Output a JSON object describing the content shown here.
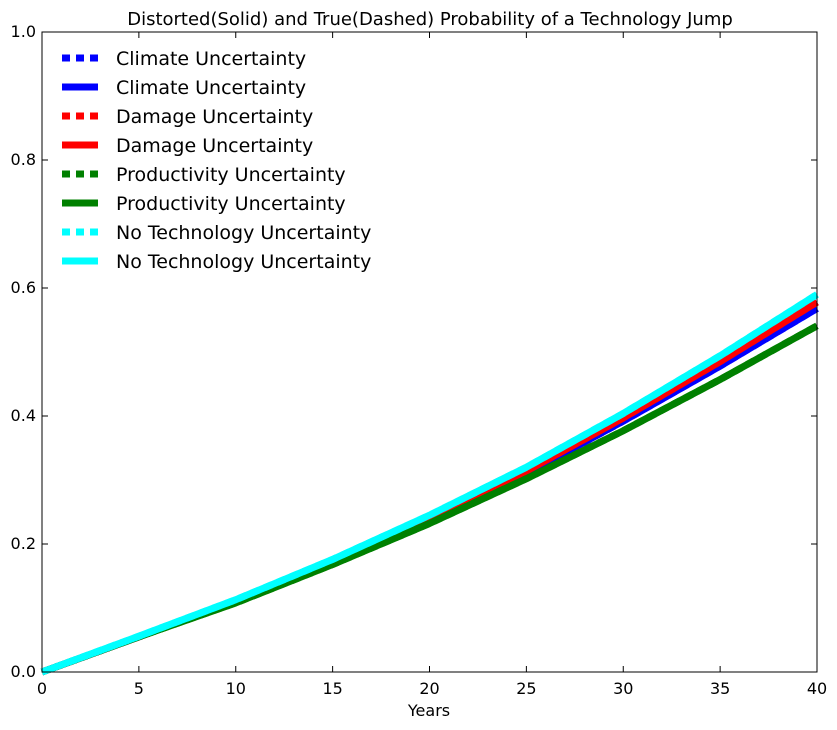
{
  "chart_data": {
    "type": "line",
    "title": "Distorted(Solid) and True(Dashed) Probability of a Technology Jump",
    "xlabel": "Years",
    "ylabel": "",
    "xlim": [
      0,
      40
    ],
    "ylim": [
      0.0,
      1.0
    ],
    "xticks": [
      "0",
      "5",
      "10",
      "15",
      "20",
      "25",
      "30",
      "35",
      "40"
    ],
    "yticks": [
      "0.0",
      "0.2",
      "0.4",
      "0.6",
      "0.8",
      "1.0"
    ],
    "grid": false,
    "legend_position": "top-left",
    "x": [
      0,
      5,
      10,
      15,
      20,
      25,
      30,
      35,
      40
    ],
    "series": [
      {
        "name": "Climate Uncertainty",
        "style": "dashed",
        "color": "#0000ff",
        "values": [
          0,
          0.055,
          0.11,
          0.172,
          0.238,
          0.31,
          0.392,
          0.478,
          0.568
        ]
      },
      {
        "name": "Climate Uncertainty",
        "style": "solid",
        "color": "#0000ff",
        "values": [
          0,
          0.055,
          0.11,
          0.172,
          0.238,
          0.31,
          0.392,
          0.478,
          0.568
        ]
      },
      {
        "name": "Damage Uncertainty",
        "style": "dashed",
        "color": "#ff0000",
        "values": [
          0,
          0.055,
          0.11,
          0.173,
          0.24,
          0.314,
          0.397,
          0.485,
          0.578
        ]
      },
      {
        "name": "Damage Uncertainty",
        "style": "solid",
        "color": "#ff0000",
        "values": [
          0,
          0.055,
          0.11,
          0.173,
          0.24,
          0.314,
          0.397,
          0.485,
          0.578
        ]
      },
      {
        "name": "Productivity Uncertainty",
        "style": "dashed",
        "color": "#008000",
        "values": [
          0,
          0.055,
          0.108,
          0.168,
          0.232,
          0.302,
          0.377,
          0.457,
          0.541
        ]
      },
      {
        "name": "Productivity Uncertainty",
        "style": "solid",
        "color": "#008000",
        "values": [
          0,
          0.055,
          0.108,
          0.168,
          0.232,
          0.302,
          0.377,
          0.457,
          0.541
        ]
      },
      {
        "name": "No Technology Uncertainty",
        "style": "dashed",
        "color": "#00ffff",
        "values": [
          0,
          0.056,
          0.113,
          0.176,
          0.245,
          0.32,
          0.404,
          0.494,
          0.59
        ]
      },
      {
        "name": "No Technology Uncertainty",
        "style": "solid",
        "color": "#00ffff",
        "values": [
          0,
          0.056,
          0.113,
          0.176,
          0.245,
          0.32,
          0.404,
          0.494,
          0.59
        ]
      }
    ]
  }
}
